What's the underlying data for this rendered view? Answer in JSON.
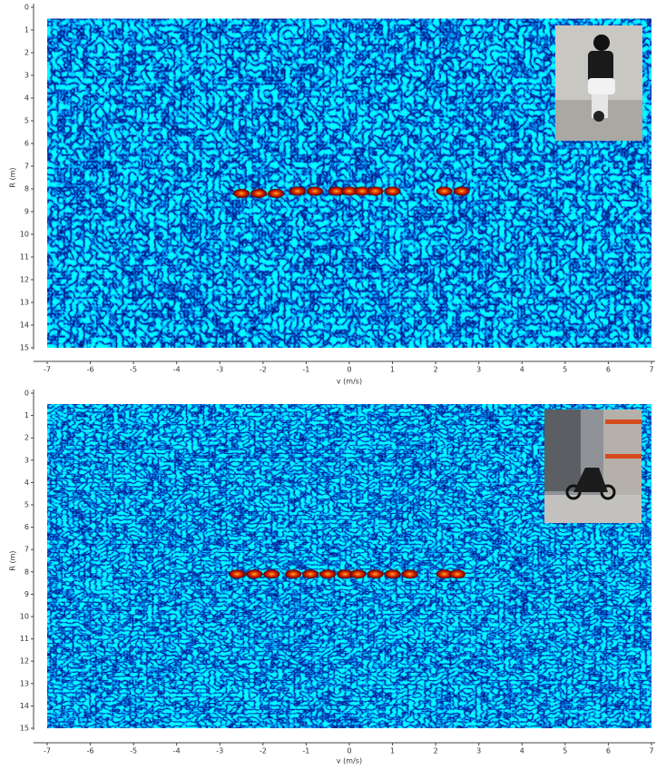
{
  "chart_data": [
    {
      "type": "heatmap",
      "x_label": "v (m/s)",
      "y_label": "R (m)",
      "xlim": [
        -7,
        7
      ],
      "xticks": [
        -7,
        -6,
        -5,
        -4,
        -3,
        -2,
        -1,
        0,
        1,
        2,
        3,
        4,
        5,
        6,
        7
      ],
      "ylim": [
        0,
        15
      ],
      "yticks": [
        0,
        1,
        2,
        3,
        4,
        5,
        6,
        7,
        8,
        9,
        10,
        11,
        12,
        13,
        14,
        15
      ],
      "y_inverted": true,
      "extent": {
        "v": [
          -7,
          7
        ],
        "r": [
          0.5,
          15
        ]
      },
      "detections": {
        "v": [
          -2.5,
          -2.1,
          -1.7,
          -1.2,
          -0.8,
          -0.3,
          0.0,
          0.3,
          0.6,
          1.0,
          2.2,
          2.6
        ],
        "r": [
          8.2,
          8.2,
          8.2,
          8.1,
          8.1,
          8.1,
          8.1,
          8.1,
          8.1,
          8.1,
          8.1,
          8.1
        ]
      }
    },
    {
      "type": "heatmap",
      "x_label": "v (m/s)",
      "y_label": "R (m)",
      "xlim": [
        -7,
        7
      ],
      "xticks": [
        -7,
        -6,
        -5,
        -4,
        -3,
        -2,
        -1,
        0,
        1,
        2,
        3,
        4,
        5,
        6,
        7
      ],
      "ylim": [
        0,
        15
      ],
      "yticks": [
        0,
        1,
        2,
        3,
        4,
        5,
        6,
        7,
        8,
        9,
        10,
        11,
        12,
        13,
        14,
        15
      ],
      "y_inverted": true,
      "extent": {
        "v": [
          -7,
          7
        ],
        "r": [
          0.5,
          15
        ]
      },
      "detections": {
        "v": [
          -2.6,
          -2.2,
          -1.8,
          -1.3,
          -0.9,
          -0.5,
          -0.1,
          0.2,
          0.6,
          1.0,
          1.4,
          2.2,
          2.5
        ],
        "r": [
          8.1,
          8.1,
          8.1,
          8.1,
          8.1,
          8.1,
          8.1,
          8.1,
          8.1,
          8.1,
          8.1,
          8.1,
          8.1
        ]
      }
    }
  ]
}
